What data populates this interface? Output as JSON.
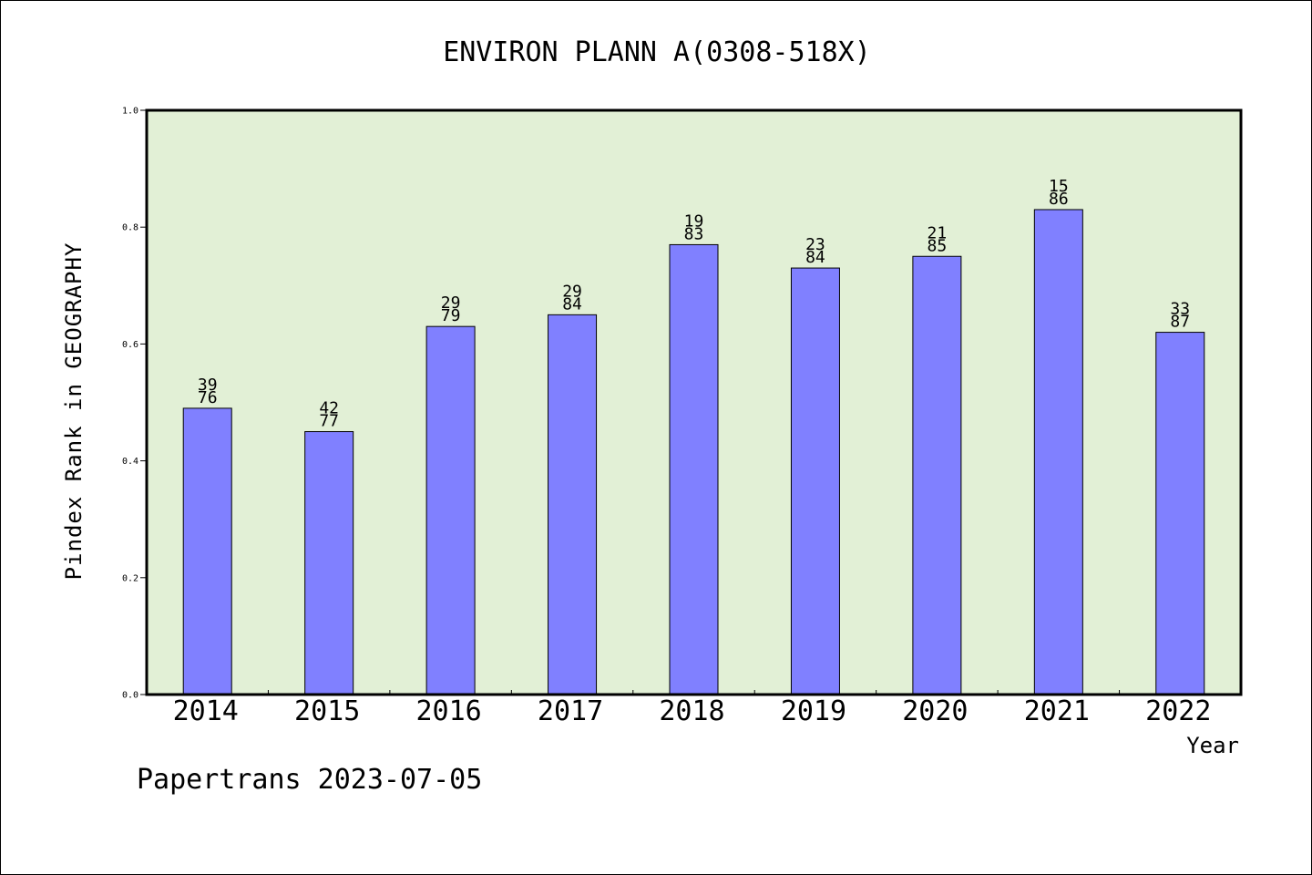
{
  "chart_data": {
    "type": "bar",
    "title": "ENVIRON PLANN A(0308-518X)",
    "xlabel": "Year",
    "ylabel": "Pindex Rank in GEOGRAPHY",
    "ylim": [
      0,
      1.0
    ],
    "yticks": [
      "0.0",
      "0.2",
      "0.4",
      "0.6",
      "0.8",
      "1.0"
    ],
    "categories": [
      "2014",
      "2015",
      "2016",
      "2017",
      "2018",
      "2019",
      "2020",
      "2021",
      "2022"
    ],
    "values": [
      0.49,
      0.45,
      0.63,
      0.65,
      0.77,
      0.73,
      0.75,
      0.83,
      0.62
    ],
    "labels_top": [
      "39",
      "42",
      "29",
      "29",
      "19",
      "23",
      "21",
      "15",
      "33"
    ],
    "labels_bottom": [
      "76",
      "77",
      "79",
      "84",
      "83",
      "84",
      "85",
      "86",
      "87"
    ],
    "grid": false,
    "legend": "none",
    "colors": {
      "bar": "#8080ff",
      "plot_background": "#e2f0d6",
      "axis": "#000000"
    }
  },
  "footer": {
    "credit": "Papertrans 2023-07-05"
  }
}
